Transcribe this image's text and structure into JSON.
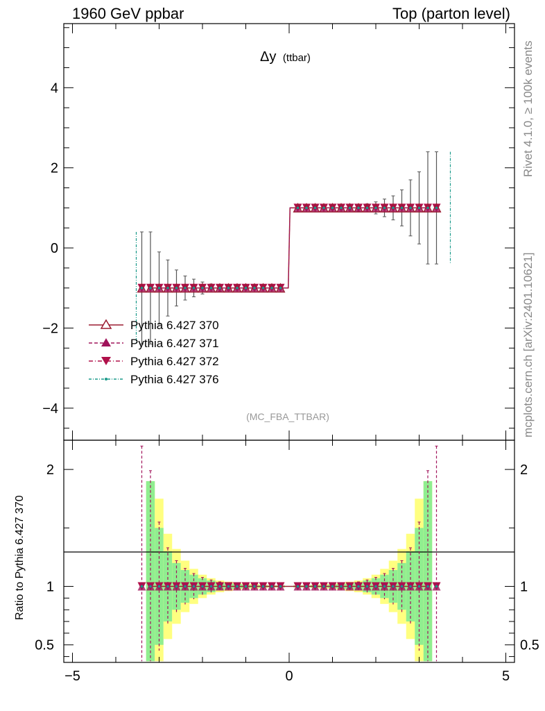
{
  "header": {
    "left": "1960 GeV ppbar",
    "right": "Top (parton level)"
  },
  "side_labels": {
    "rivet": "Rivet 4.1.0, ≥ 100k events",
    "mcplots": "mcplots.cern.ch [arXiv:2401.10621]"
  },
  "plot": {
    "title_main": "Δy",
    "title_sub": "(ttbar)",
    "analysis": "(MC_FBA_TTBAR)",
    "ratio_ylabel": "Ratio to Pythia 6.427 370"
  },
  "colors": {
    "s370": "#9b1b30",
    "s371": "#a0135a",
    "s372": "#b0104a",
    "s376": "#1a9a8a",
    "band_yellow": "#ffff80",
    "band_green": "#90ee90",
    "errbar": "#555555"
  },
  "chart_data": {
    "type": "line",
    "xlim": [
      -5.2,
      5.2
    ],
    "main": {
      "ylim": [
        -4.8,
        5.6
      ],
      "yticks": [
        -4,
        -2,
        0,
        2,
        4
      ],
      "yticklabels": [
        "−4",
        "−2",
        "0",
        "2",
        "4"
      ]
    },
    "ratio": {
      "ylim": [
        0.35,
        2.25
      ],
      "yticks": [
        0.5,
        1,
        2
      ],
      "yticklabels": [
        "0.5",
        "1",
        "2"
      ]
    },
    "xticks": [
      -5,
      0,
      5
    ],
    "xticklabels": [
      "−5",
      "0",
      "5"
    ],
    "bins_x": [
      -3.2,
      -3.0,
      -2.8,
      -2.6,
      -2.4,
      -2.2,
      -2.0,
      -1.8,
      -1.6,
      -1.4,
      -1.2,
      -1.0,
      -0.8,
      -0.6,
      -0.4,
      -0.2,
      0.2,
      0.4,
      0.6,
      0.8,
      1.0,
      1.2,
      1.4,
      1.6,
      1.8,
      2.0,
      2.2,
      2.4,
      2.6,
      2.8,
      3.0,
      3.2
    ],
    "series": [
      {
        "name": "Pythia 6.427 370",
        "marker": "triangle-open",
        "value": "±1 (sign of Δy)"
      },
      {
        "name": "Pythia 6.427 371",
        "marker": "triangle-filled",
        "value": "±1 (sign of Δy)"
      },
      {
        "name": "Pythia 6.427 372",
        "marker": "triangle-down",
        "value": "±1 (sign of Δy)"
      },
      {
        "name": "Pythia 6.427 376",
        "marker": "dot",
        "value": "±1 (sign of Δy)"
      }
    ],
    "main_errors": [
      1.4,
      0.9,
      0.7,
      0.45,
      0.3,
      0.22,
      0.15,
      0.1,
      0.08,
      0.06,
      0.05,
      0.04,
      0.03,
      0.03,
      0.02,
      0.02,
      0.02,
      0.02,
      0.03,
      0.03,
      0.04,
      0.05,
      0.06,
      0.08,
      0.1,
      0.15,
      0.22,
      0.3,
      0.45,
      0.7,
      0.9,
      1.4
    ],
    "outer_points": [
      {
        "x": -3.4,
        "y": -1.0,
        "err": 1.4
      },
      {
        "x": 3.4,
        "y": 1.0,
        "err": 1.4
      }
    ],
    "ratio_bands_yellow": [
      0.9,
      0.75,
      0.45,
      0.32,
      0.22,
      0.15,
      0.1,
      0.07,
      0.05,
      0.04,
      0.03,
      0.02,
      0.02,
      0.015,
      0.01,
      0.01,
      0.01,
      0.01,
      0.015,
      0.02,
      0.02,
      0.03,
      0.04,
      0.05,
      0.07,
      0.1,
      0.15,
      0.22,
      0.32,
      0.45,
      0.75,
      0.9
    ],
    "ratio_bands_green": [
      0.9,
      0.5,
      0.3,
      0.2,
      0.14,
      0.1,
      0.07,
      0.05,
      0.035,
      0.025,
      0.02,
      0.015,
      0.01,
      0.01,
      0.008,
      0.008,
      0.008,
      0.008,
      0.01,
      0.01,
      0.015,
      0.02,
      0.025,
      0.035,
      0.05,
      0.07,
      0.1,
      0.14,
      0.2,
      0.3,
      0.5,
      0.9
    ]
  }
}
